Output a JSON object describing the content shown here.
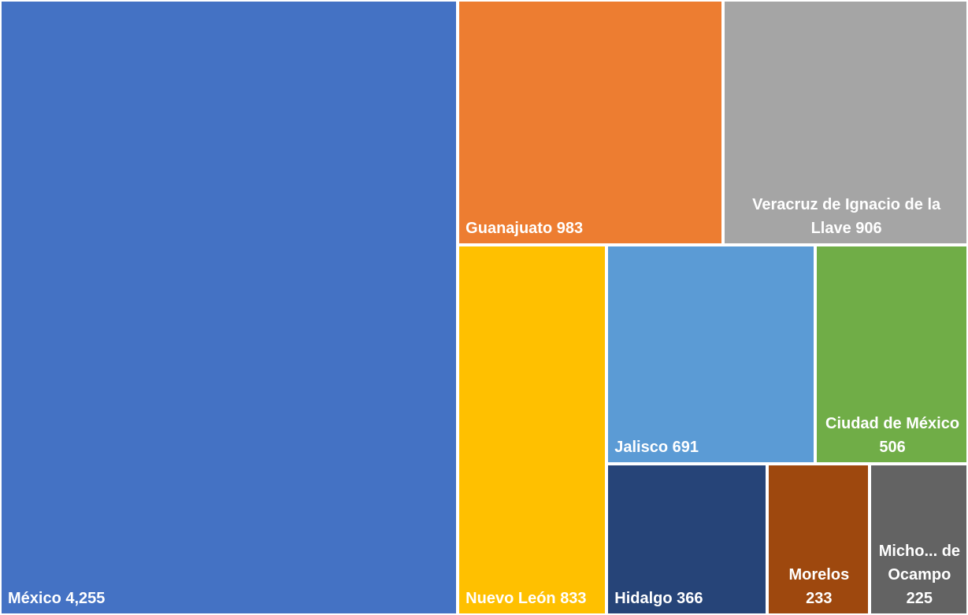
{
  "chart_data": {
    "type": "treemap",
    "categories": [
      "México",
      "Guanajuato",
      "Veracruz de Ignacio de la Llave",
      "Nuevo León",
      "Jalisco",
      "Ciudad de México",
      "Hidalgo",
      "Morelos",
      "Micho... de Ocampo"
    ],
    "values": [
      4255,
      983,
      906,
      833,
      691,
      506,
      366,
      233,
      225
    ],
    "value_labels": [
      "4,255",
      "983",
      "906",
      "833",
      "691",
      "506",
      "366",
      "233",
      "225"
    ],
    "colors": [
      "#4472c4",
      "#ed7d31",
      "#a5a5a5",
      "#ffc000",
      "#5b9bd5",
      "#70ad47",
      "#264478",
      "#9e480e",
      "#636363"
    ]
  }
}
